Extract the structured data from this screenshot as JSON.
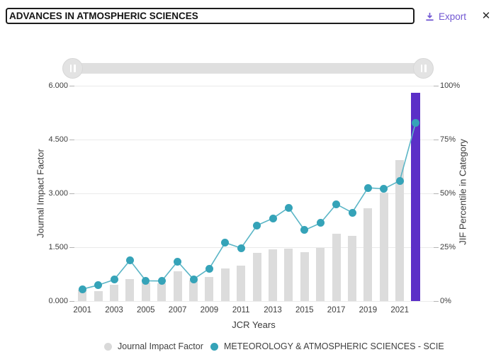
{
  "header": {
    "journal_input": {
      "value": "ADVANCES IN ATMOSPHERIC SCIENCES",
      "placeholder": ""
    },
    "export_label": "Export",
    "close_glyph": "✕"
  },
  "colors": {
    "accent_purple": "#5b2fc7",
    "export_purple": "#7157d2",
    "teal_dot": "#35a3b8",
    "teal_line": "#5ab5c6",
    "bar_gray": "#dcdcdc",
    "legend_gray": "#d9d9d9"
  },
  "chart_data": {
    "type": "bar+line",
    "title": "",
    "categories": [
      "2001",
      "2002",
      "2003",
      "2004",
      "2005",
      "2006",
      "2007",
      "2008",
      "2009",
      "2010",
      "2011",
      "2012",
      "2013",
      "2014",
      "2015",
      "2016",
      "2017",
      "2018",
      "2019",
      "2020",
      "2021",
      "2022"
    ],
    "series": [
      {
        "name": "Journal Impact Factor",
        "type": "bar",
        "axis": "left",
        "color": "#dcdcdc",
        "highlight_last": true,
        "highlight_color": "#5b2fc7",
        "values": [
          0.32,
          0.28,
          0.46,
          0.61,
          0.52,
          0.5,
          0.82,
          0.58,
          0.68,
          0.91,
          0.99,
          1.34,
          1.44,
          1.47,
          1.36,
          1.49,
          1.87,
          1.81,
          2.58,
          3.01,
          3.93,
          5.81
        ]
      },
      {
        "name": "METEOROLOGY & ATMOSPHERIC SCIENCES - SCIE",
        "type": "line",
        "axis": "right",
        "color": "#35a3b8",
        "values": [
          5.5,
          7.4,
          9.9,
          18.9,
          9.4,
          9.3,
          18.4,
          10.1,
          15.1,
          27.1,
          24.6,
          35.1,
          38.4,
          43.4,
          32.9,
          36.2,
          45.0,
          41.1,
          52.6,
          52.1,
          55.9,
          82.8
        ]
      }
    ],
    "left_axis": {
      "title": "Journal Impact Factor",
      "tick_labels": [
        "0.000",
        "1.500",
        "3.000",
        "4.500",
        "6.000"
      ],
      "range": [
        0,
        6
      ]
    },
    "right_axis": {
      "title": "JIF Percentile in Category",
      "tick_labels": [
        "0%",
        "25%",
        "50%",
        "75%",
        "100%"
      ],
      "range": [
        0,
        100
      ]
    },
    "x_axis": {
      "title": "JCR Years",
      "tick_labels": [
        "2001",
        "2003",
        "2005",
        "2007",
        "2009",
        "2011",
        "2013",
        "2015",
        "2017",
        "2019",
        "2021"
      ]
    },
    "legend": [
      {
        "label": "Journal Impact Factor",
        "color": "#d9d9d9"
      },
      {
        "label": "METEOROLOGY & ATMOSPHERIC SCIENCES - SCIE",
        "color": "#35a3b8"
      }
    ],
    "grid": true,
    "legend_position": "bottom"
  }
}
